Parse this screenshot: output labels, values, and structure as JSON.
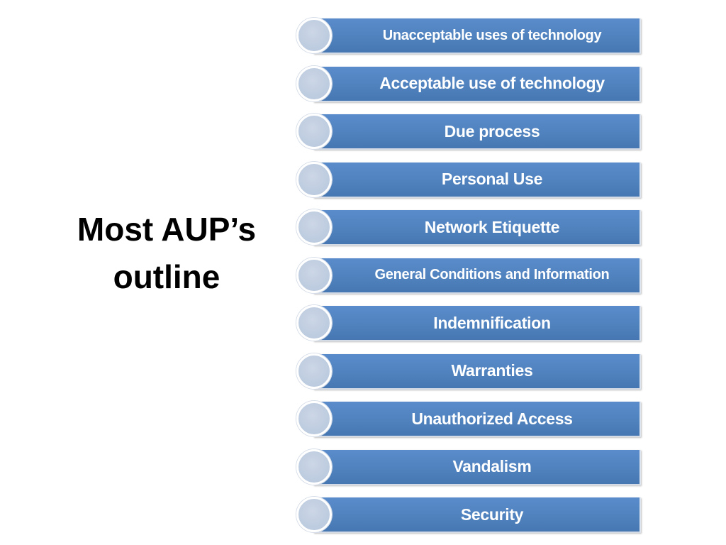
{
  "title": {
    "line1": "Most AUP’s",
    "line2": "outline"
  },
  "items": [
    {
      "label": "Unacceptable uses of technology"
    },
    {
      "label": "Acceptable use of technology"
    },
    {
      "label": "Due process"
    },
    {
      "label": "Personal Use"
    },
    {
      "label": "Network Etiquette"
    },
    {
      "label": "General Conditions and Information"
    },
    {
      "label": "Indemnification"
    },
    {
      "label": "Warranties"
    },
    {
      "label": "Unauthorized Access"
    },
    {
      "label": "Vandalism"
    },
    {
      "label": "Security"
    }
  ],
  "colors": {
    "bar": "#4f81bd",
    "circle": "#bccbdf",
    "text": "#ffffff",
    "title": "#000000"
  }
}
